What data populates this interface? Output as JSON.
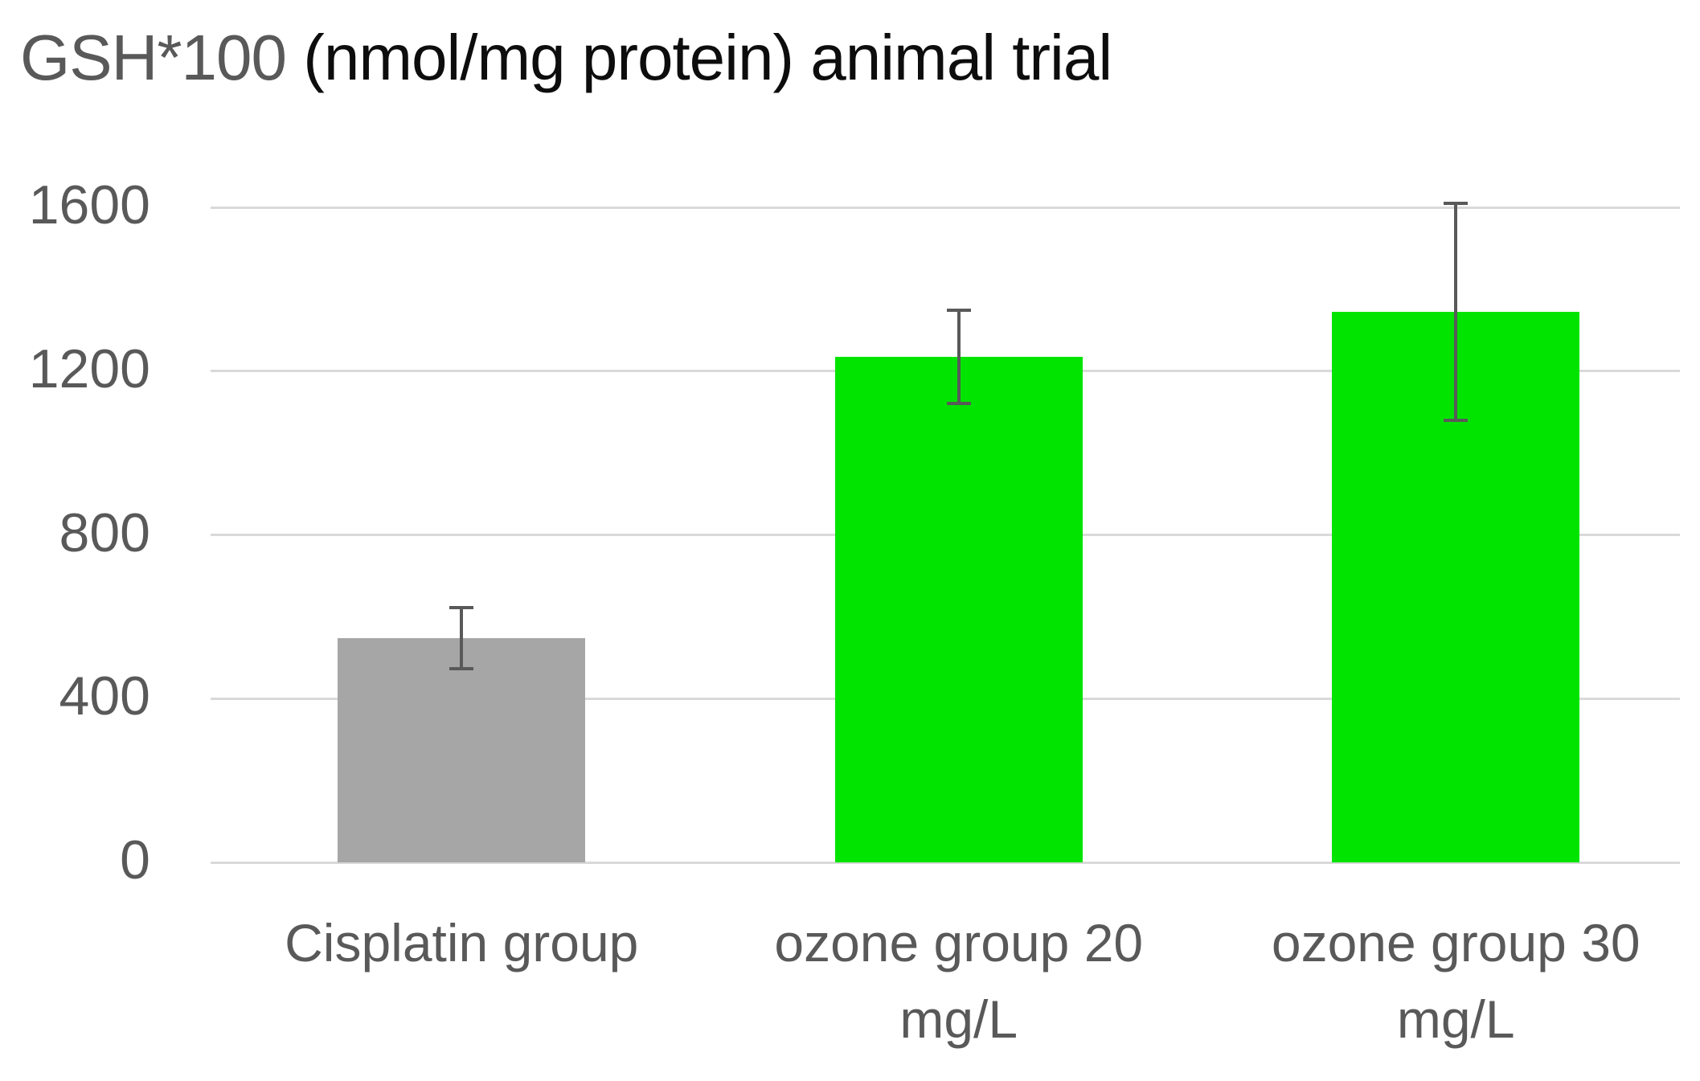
{
  "title": {
    "gray": "GSH*100",
    "rest": " (nmol/mg protein) animal trial"
  },
  "chart_data": {
    "type": "bar",
    "title": "GSH*100 (nmol/mg protein) animal trial",
    "categories": [
      "Cisplatin group",
      "ozone group 20 mg/L",
      "ozone group 30 mg/L"
    ],
    "tick_lines": [
      [
        "Cisplatin group"
      ],
      [
        "ozone group 20",
        "mg/L"
      ],
      [
        "ozone group 30",
        "mg/L"
      ]
    ],
    "values": [
      548,
      1235,
      1345
    ],
    "errors": [
      78,
      117,
      269
    ],
    "bar_colors": [
      "#a6a6a6",
      "#00e400",
      "#00e400"
    ],
    "error_bar_color": "#595959",
    "gridline_color": "#d9d9d9",
    "axis_text_color": "#595959",
    "yticks": [
      0,
      400,
      800,
      1200,
      1600
    ],
    "ylim": [
      0,
      1600
    ],
    "xlabel": "",
    "ylabel": "",
    "grid": true,
    "legend": false
  }
}
